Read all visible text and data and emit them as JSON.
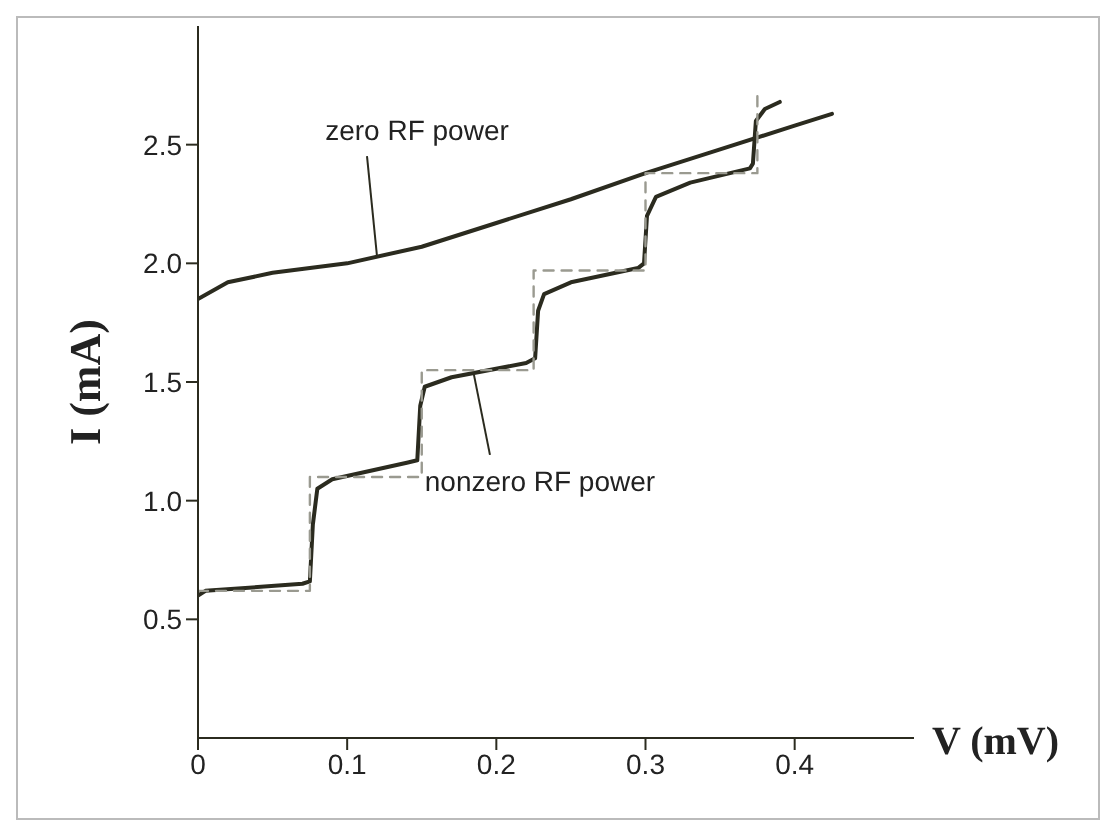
{
  "chart_data": {
    "type": "line",
    "xlabel": "V (mV)",
    "ylabel": "I (mA)",
    "xlim": [
      0,
      0.48
    ],
    "ylim": [
      0,
      3.0
    ],
    "xticks": [
      0,
      0.1,
      0.2,
      0.3,
      0.4
    ],
    "yticks": [
      0.5,
      {
        "value": 1,
        "label": "1.0"
      },
      1.5,
      {
        "value": 2,
        "label": "2.0"
      },
      2.5
    ],
    "grid": false,
    "legend": false,
    "marker": "none",
    "series": [
      {
        "color": "#2b2b1f",
        "line_style": "solid",
        "x": [
          0,
          0.02,
          0.05,
          0.1,
          0.15,
          0.2,
          0.25,
          0.3,
          0.35,
          0.4,
          0.425
        ],
        "values": [
          1.85,
          1.92,
          1.96,
          2.0,
          2.07,
          2.17,
          2.27,
          2.38,
          2.48,
          2.58,
          2.63
        ]
      },
      {
        "color": "#2b2b1f",
        "line_style": "solid",
        "x": [
          0,
          0.005,
          0.07,
          0.075,
          0.077,
          0.08,
          0.09,
          0.14,
          0.147,
          0.149,
          0.152,
          0.17,
          0.22,
          0.226,
          0.228,
          0.232,
          0.25,
          0.295,
          0.299,
          0.301,
          0.307,
          0.33,
          0.37,
          0.372,
          0.374,
          0.38,
          0.39
        ],
        "values": [
          0.6,
          0.62,
          0.65,
          0.66,
          0.9,
          1.05,
          1.09,
          1.16,
          1.17,
          1.4,
          1.48,
          1.52,
          1.58,
          1.6,
          1.8,
          1.87,
          1.92,
          1.98,
          2.0,
          2.2,
          2.28,
          2.34,
          2.4,
          2.42,
          2.6,
          2.65,
          2.68
        ]
      },
      {
        "color": "#9a9a90",
        "line_style": "dashed",
        "x": [
          0,
          0.075,
          0.075,
          0.15,
          0.15,
          0.225,
          0.225,
          0.3,
          0.3,
          0.375,
          0.375
        ],
        "values": [
          0.62,
          0.62,
          1.1,
          1.1,
          1.55,
          1.55,
          1.97,
          1.97,
          2.38,
          2.38,
          2.72
        ]
      }
    ],
    "annotations": [
      {
        "text": "zero RF power",
        "x": 0.12,
        "y": 2.03
      },
      {
        "text": "nonzero RF power",
        "x": 0.185,
        "y": 1.53
      }
    ]
  }
}
